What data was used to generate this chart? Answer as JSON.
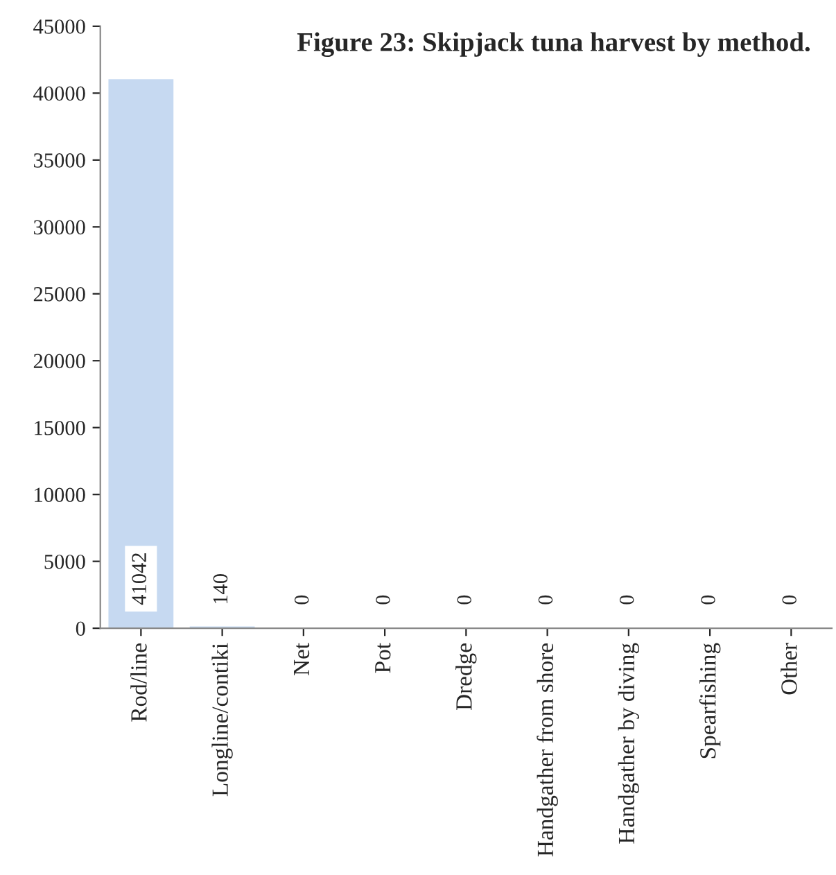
{
  "chart_data": {
    "type": "bar",
    "title": "Figure 23: Skipjack tuna harvest by method.",
    "categories": [
      "Rod/line",
      "Longline/contiki",
      "Net",
      "Pot",
      "Dredge",
      "Handgather from shore",
      "Handgather by diving",
      "Spearfishing",
      "Other"
    ],
    "values": [
      41042,
      140,
      0,
      0,
      0,
      0,
      0,
      0,
      0
    ],
    "color": "#c6d9f1",
    "ylim": [
      0,
      45000
    ],
    "yticks": [
      0,
      5000,
      10000,
      15000,
      20000,
      25000,
      30000,
      35000,
      40000,
      45000
    ],
    "data_labels": true,
    "grid": false
  }
}
